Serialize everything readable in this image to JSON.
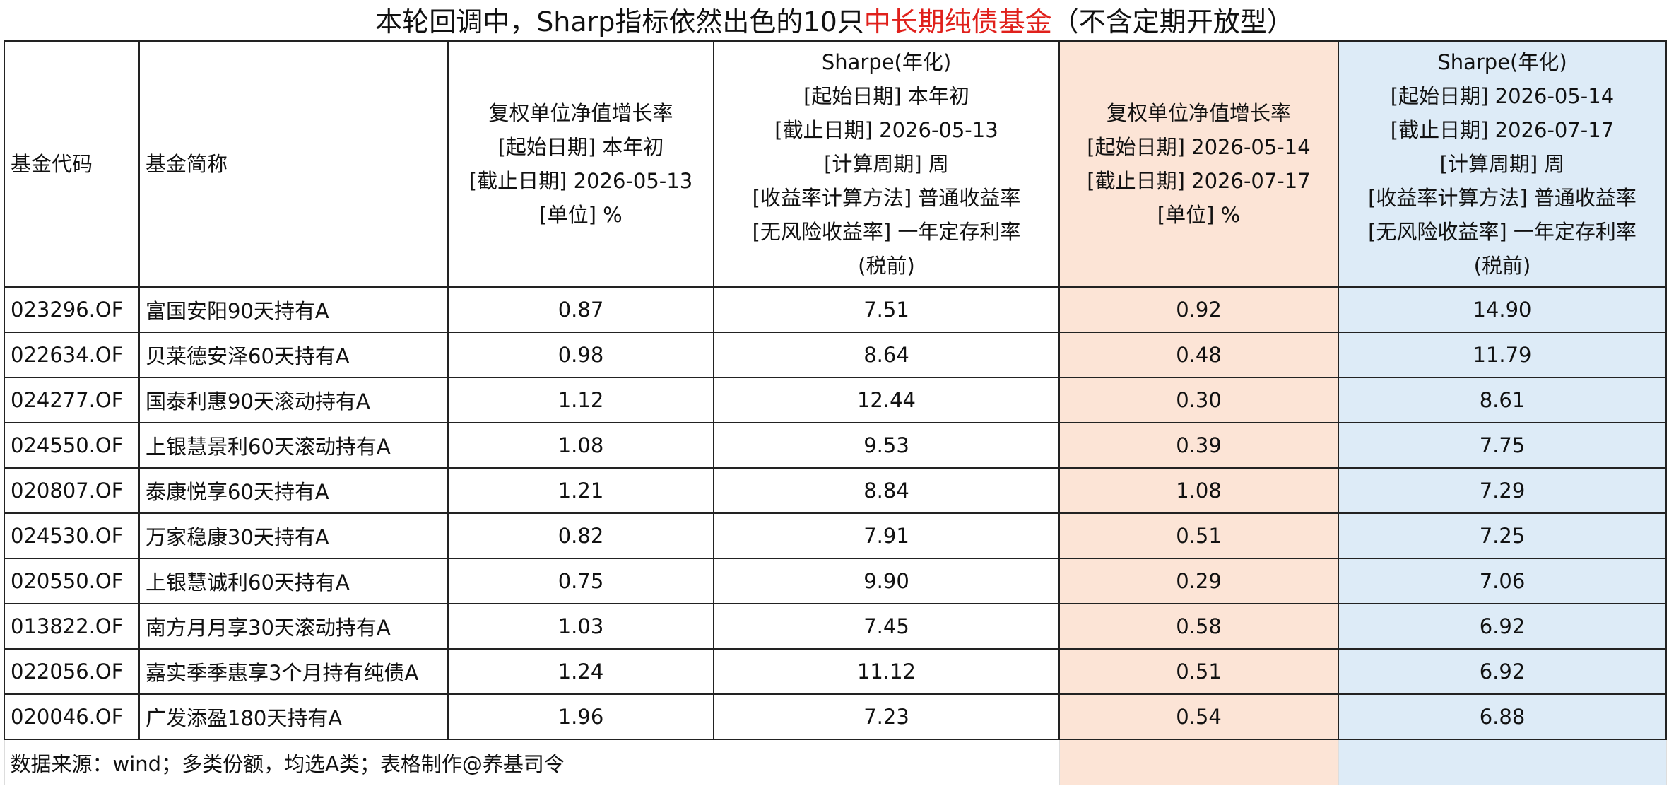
{
  "title": {
    "before": "本轮回调中，Sharp指标依然出色的10只",
    "highlight": "中长期纯债基金",
    "after": "（不含定期开放型）"
  },
  "table": {
    "headers": [
      [
        "基金代码"
      ],
      [
        "基金简称"
      ],
      [
        "复权单位净值增长率",
        "[起始日期] 本年初",
        "[截止日期] 2026-05-13",
        "[单位] %"
      ],
      [
        "Sharpe(年化)",
        "[起始日期] 本年初",
        "[截止日期] 2026-05-13",
        "[计算周期] 周",
        "[收益率计算方法] 普通收益率",
        "[无风险收益率] 一年定存利率",
        "(税前)"
      ],
      [
        "复权单位净值增长率",
        "[起始日期] 2026-05-14",
        "[截止日期] 2026-07-17",
        "[单位] %"
      ],
      [
        "Sharpe(年化)",
        "[起始日期] 2026-05-14",
        "[截止日期] 2026-07-17",
        "[计算周期] 周",
        "[收益率计算方法] 普通收益率",
        "[无风险收益率] 一年定存利率",
        "(税前)"
      ]
    ],
    "rows": [
      [
        "023296.OF",
        "富国安阳90天持有A",
        "0.87",
        "7.51",
        "0.92",
        "14.90"
      ],
      [
        "022634.OF",
        "贝莱德安泽60天持有A",
        "0.98",
        "8.64",
        "0.48",
        "11.79"
      ],
      [
        "024277.OF",
        "国泰利惠90天滚动持有A",
        "1.12",
        "12.44",
        "0.30",
        "8.61"
      ],
      [
        "024550.OF",
        "上银慧景利60天滚动持有A",
        "1.08",
        "9.53",
        "0.39",
        "7.75"
      ],
      [
        "020807.OF",
        "泰康悦享60天持有A",
        "1.21",
        "8.84",
        "1.08",
        "7.29"
      ],
      [
        "024530.OF",
        "万家稳康30天持有A",
        "0.82",
        "7.91",
        "0.51",
        "7.25"
      ],
      [
        "020550.OF",
        "上银慧诚利60天持有A",
        "0.75",
        "9.90",
        "0.29",
        "7.06"
      ],
      [
        "013822.OF",
        "南方月月享30天滚动持有A",
        "1.03",
        "7.45",
        "0.58",
        "6.92"
      ],
      [
        "022056.OF",
        "嘉实季季惠享3个月持有纯债A",
        "1.24",
        "11.12",
        "0.51",
        "6.92"
      ],
      [
        "020046.OF",
        "广发添盈180天持有A",
        "1.96",
        "7.23",
        "0.54",
        "6.88"
      ]
    ]
  },
  "footnote": "数据来源：wind；多类份额，均选A类；表格制作@养基司令"
}
